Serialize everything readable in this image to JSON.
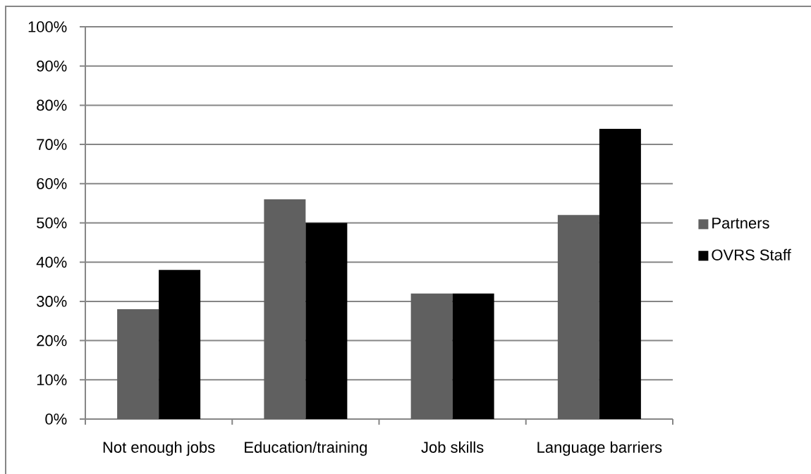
{
  "chart_data": {
    "type": "bar",
    "categories": [
      "Not enough jobs",
      "Education/training",
      "Job skills",
      "Language barriers"
    ],
    "series": [
      {
        "name": "Partners",
        "color": "#606060",
        "values": [
          28,
          56,
          32,
          52
        ]
      },
      {
        "name": "OVRS Staff",
        "color": "#000000",
        "values": [
          38,
          50,
          32,
          74
        ]
      }
    ],
    "ylim": [
      0,
      100
    ],
    "yticks": [
      {
        "value": 0,
        "label": "0%"
      },
      {
        "value": 10,
        "label": "10%"
      },
      {
        "value": 20,
        "label": "20%"
      },
      {
        "value": 30,
        "label": "30%"
      },
      {
        "value": 40,
        "label": "40%"
      },
      {
        "value": 50,
        "label": "50%"
      },
      {
        "value": 60,
        "label": "60%"
      },
      {
        "value": 70,
        "label": "70%"
      },
      {
        "value": 80,
        "label": "80%"
      },
      {
        "value": 90,
        "label": "90%"
      },
      {
        "value": 100,
        "label": "100%"
      }
    ],
    "grid": "y",
    "legend": "right"
  }
}
